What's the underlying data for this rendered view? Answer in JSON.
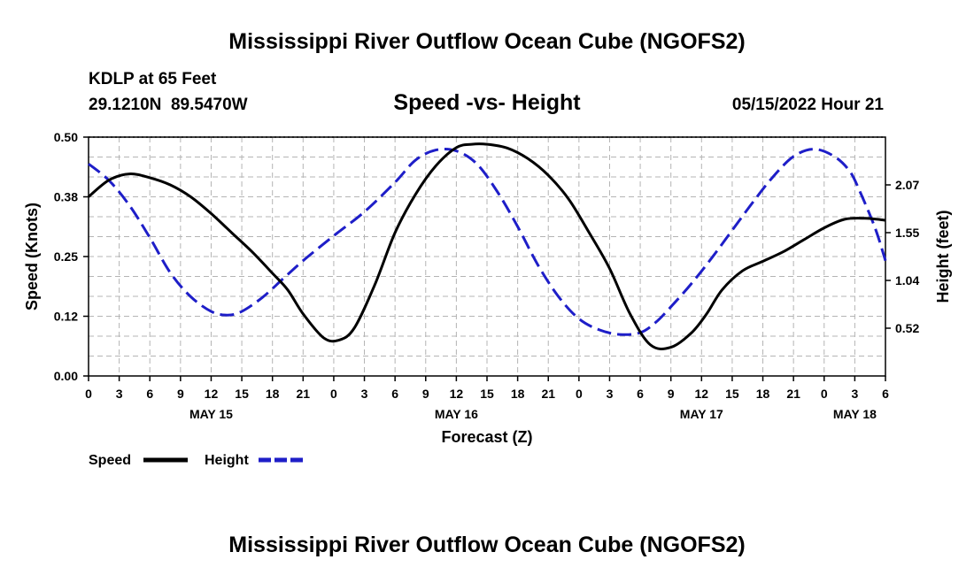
{
  "chart_data": {
    "type": "line",
    "title": "Mississippi River Outflow Ocean Cube (NGOFS2)",
    "footer_title": "Mississippi River Outflow Ocean Cube (NGOFS2)",
    "subtitle": "Speed -vs- Height",
    "station": "KDLP at 65 Feet",
    "location": "29.1210N  89.5470W",
    "timestamp": "05/15/2022 Hour 21",
    "xlabel": "Forecast (Z)",
    "ylabel_left": "Speed (Knots)",
    "ylabel_right": "Height (feet)",
    "x_ticks": [
      "0",
      "3",
      "6",
      "9",
      "12",
      "15",
      "18",
      "21",
      "0",
      "3",
      "6",
      "9",
      "12",
      "15",
      "18",
      "21",
      "0",
      "3",
      "6",
      "9",
      "12",
      "15",
      "18",
      "21",
      "0",
      "3",
      "6"
    ],
    "date_labels": [
      {
        "label": "MAY 15",
        "hour": 12
      },
      {
        "label": "MAY 16",
        "hour": 36
      },
      {
        "label": "MAY 17",
        "hour": 60
      },
      {
        "label": "MAY 18",
        "hour": 75
      }
    ],
    "xlim": [
      0,
      78
    ],
    "ylim_left": [
      0,
      0.5
    ],
    "left_ticks": [
      "0.00",
      "0.12",
      "0.25",
      "0.38",
      "0.50"
    ],
    "left_tick_values": [
      0,
      0.125,
      0.25,
      0.375,
      0.5
    ],
    "ylim_right": [
      0,
      2.59
    ],
    "right_ticks": [
      "0.52",
      "1.04",
      "1.55",
      "2.07"
    ],
    "right_tick_values": [
      0.518,
      1.036,
      1.554,
      2.072
    ],
    "grid": true,
    "series": [
      {
        "name": "Speed",
        "axis": "left",
        "color": "#000000",
        "style": "solid",
        "x": [
          0,
          2,
          4,
          6,
          8,
          10,
          12,
          14,
          16,
          18,
          19.5,
          21,
          23,
          24.5,
          26,
          28,
          30,
          32,
          34,
          36,
          37.5,
          39,
          41,
          43,
          45,
          47,
          49,
          51,
          53,
          55,
          57,
          59,
          60.5,
          62,
          64,
          66,
          68,
          70,
          72,
          74,
          76,
          78
        ],
        "values": [
          0.375,
          0.41,
          0.423,
          0.415,
          0.4,
          0.375,
          0.34,
          0.3,
          0.26,
          0.215,
          0.18,
          0.13,
          0.08,
          0.075,
          0.1,
          0.19,
          0.3,
          0.38,
          0.44,
          0.478,
          0.485,
          0.485,
          0.477,
          0.455,
          0.42,
          0.37,
          0.3,
          0.225,
          0.13,
          0.065,
          0.06,
          0.09,
          0.13,
          0.18,
          0.22,
          0.24,
          0.26,
          0.285,
          0.31,
          0.328,
          0.33,
          0.326
        ]
      },
      {
        "name": "Height",
        "axis": "right",
        "color": "#1e1ec8",
        "style": "dashed",
        "x": [
          0,
          2,
          4,
          6,
          8,
          10,
          12,
          13.6,
          15,
          17,
          19,
          21,
          24,
          27,
          30,
          32,
          34,
          36,
          38,
          40,
          42,
          44,
          46,
          48,
          50,
          52,
          54,
          55.5,
          57,
          59,
          61,
          63,
          65,
          67,
          69,
          71,
          73,
          74.5,
          75.5,
          77,
          78
        ],
        "values": [
          2.3,
          2.12,
          1.85,
          1.5,
          1.12,
          0.86,
          0.7,
          0.66,
          0.7,
          0.85,
          1.05,
          1.25,
          1.52,
          1.78,
          2.1,
          2.34,
          2.45,
          2.44,
          2.3,
          2.0,
          1.62,
          1.2,
          0.86,
          0.62,
          0.5,
          0.45,
          0.47,
          0.58,
          0.75,
          1.0,
          1.28,
          1.58,
          1.88,
          2.16,
          2.38,
          2.46,
          2.38,
          2.22,
          2.0,
          1.6,
          1.25
        ]
      }
    ],
    "legend": [
      {
        "label": "Speed",
        "color": "#000000",
        "style": "solid"
      },
      {
        "label": "Height",
        "color": "#1e1ec8",
        "style": "dashed"
      }
    ]
  }
}
